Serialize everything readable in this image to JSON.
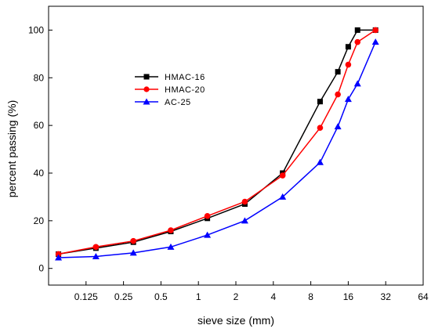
{
  "chart_data": {
    "type": "line",
    "title": "",
    "xlabel": "sieve size (mm)",
    "ylabel": "percent passing (%)",
    "x_scale": "log2",
    "xlim": [
      0.0625,
      64
    ],
    "ylim": [
      -7,
      110
    ],
    "x_ticks": [
      0.125,
      0.25,
      0.5,
      1,
      2,
      4,
      8,
      16,
      32,
      64
    ],
    "x_tick_labels": [
      "0.125",
      "0.25",
      "0.5",
      "1",
      "2",
      "4",
      "8",
      "16",
      "32",
      "64"
    ],
    "y_ticks": [
      0,
      20,
      40,
      60,
      80,
      100
    ],
    "y_tick_labels": [
      "0",
      "20",
      "40",
      "60",
      "80",
      "100"
    ],
    "grid": false,
    "legend_position": "upper-left",
    "series": [
      {
        "name": "HMAC-16",
        "color": "#000000",
        "marker": "square",
        "x": [
          0.075,
          0.15,
          0.3,
          0.6,
          1.18,
          2.36,
          4.75,
          9.5,
          13.2,
          16,
          19,
          26.5
        ],
        "y": [
          6,
          8.5,
          11,
          15.5,
          21,
          27,
          40,
          70,
          82.5,
          93,
          100,
          100
        ]
      },
      {
        "name": "HMAC-20",
        "color": "#ff0000",
        "marker": "circle",
        "x": [
          0.075,
          0.15,
          0.3,
          0.6,
          1.18,
          2.36,
          4.75,
          9.5,
          13.2,
          16,
          19,
          26.5
        ],
        "y": [
          6,
          9,
          11.5,
          16,
          22,
          28,
          39,
          59,
          73,
          85.5,
          95,
          100
        ]
      },
      {
        "name": "AC-25",
        "color": "#0000ff",
        "marker": "triangle",
        "x": [
          0.075,
          0.15,
          0.3,
          0.6,
          1.18,
          2.36,
          4.75,
          9.5,
          13.2,
          16,
          19,
          26.5
        ],
        "y": [
          4.5,
          5,
          6.5,
          9,
          14,
          20,
          30,
          44.5,
          59.5,
          71,
          77.5,
          95
        ]
      }
    ]
  }
}
